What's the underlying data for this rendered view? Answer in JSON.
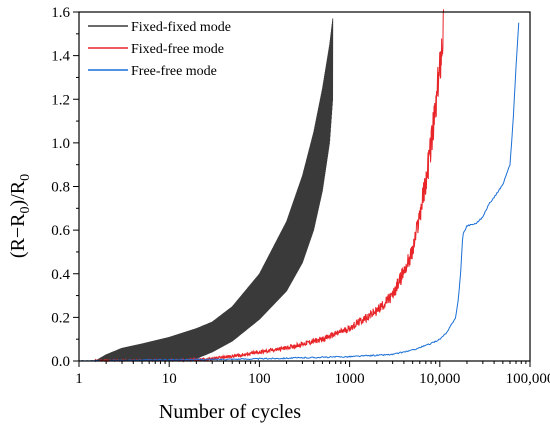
{
  "chart_data": {
    "type": "line",
    "title": "",
    "xlabel": "Number of cycles",
    "ylabel": "(R−R0)/R0",
    "xscale": "log",
    "xlim": [
      1,
      100000
    ],
    "ylim": [
      0,
      1.6
    ],
    "x_ticks": [
      1,
      10,
      100,
      1000,
      10000,
      100000
    ],
    "x_tick_labels": [
      "1",
      "10",
      "100",
      "1000",
      "10,000",
      "100,000"
    ],
    "y_ticks": [
      0.0,
      0.2,
      0.4,
      0.6,
      0.8,
      1.0,
      1.2,
      1.4,
      1.6
    ],
    "y_tick_labels": [
      "0.0",
      "0.2",
      "0.4",
      "0.6",
      "0.8",
      "1.0",
      "1.2",
      "1.4",
      "1.6"
    ],
    "grid": false,
    "legend_position": "top-left",
    "series": [
      {
        "name": "Fixed-fixed mode",
        "color": "#3a3a3a",
        "style": "oscillating",
        "x": [
          1.5,
          2,
          3,
          5,
          10,
          20,
          30,
          50,
          100,
          200,
          300,
          400,
          500,
          600,
          650
        ],
        "upper": [
          0.0,
          0.03,
          0.06,
          0.08,
          0.11,
          0.15,
          0.18,
          0.25,
          0.4,
          0.64,
          0.85,
          1.05,
          1.25,
          1.45,
          1.57
        ],
        "lower": [
          0.0,
          0.0,
          0.0,
          0.0,
          0.0,
          0.01,
          0.04,
          0.09,
          0.19,
          0.32,
          0.45,
          0.6,
          0.78,
          1.0,
          1.2
        ]
      },
      {
        "name": "Fixed-free mode",
        "color": "#e8262a",
        "style": "noisy",
        "x": [
          1.5,
          10,
          30,
          70,
          100,
          200,
          500,
          1000,
          2000,
          3000,
          5000,
          7000,
          9000,
          10000,
          11000
        ],
        "y": [
          0.0,
          0.0,
          0.01,
          0.03,
          0.04,
          0.06,
          0.1,
          0.15,
          0.23,
          0.3,
          0.5,
          0.82,
          1.15,
          1.35,
          1.54
        ]
      },
      {
        "name": "Free-free mode",
        "color": "#1a6fd6",
        "style": "line",
        "x": [
          1,
          100,
          1000,
          3000,
          5000,
          8000,
          10000,
          12000,
          14000,
          15000,
          16000,
          17000,
          18000,
          20000,
          25000,
          30000,
          35000,
          40000,
          50000,
          60000,
          65000,
          70000,
          75000
        ],
        "y": [
          0.0,
          0.01,
          0.02,
          0.03,
          0.05,
          0.08,
          0.1,
          0.13,
          0.18,
          0.2,
          0.28,
          0.4,
          0.58,
          0.62,
          0.63,
          0.66,
          0.72,
          0.75,
          0.81,
          0.9,
          1.1,
          1.35,
          1.55
        ]
      }
    ]
  }
}
